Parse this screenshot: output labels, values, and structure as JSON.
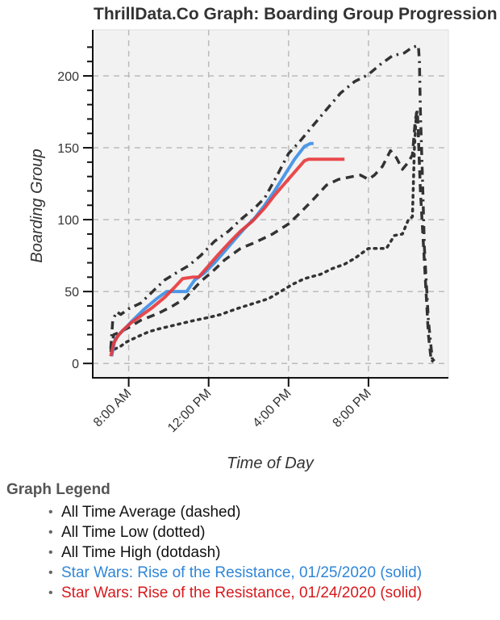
{
  "chart_data": {
    "type": "line",
    "title": "ThrillData.Co Graph: Boarding Group Progression",
    "xlabel": "Time of Day",
    "ylabel": "Boarding Group",
    "xlim_hours": [
      6.2,
      24.0
    ],
    "ylim": [
      -10,
      232
    ],
    "grid": true,
    "x_ticks": [
      {
        "hour": 8,
        "label": "8:00 AM"
      },
      {
        "hour": 12,
        "label": "12:00 PM"
      },
      {
        "hour": 16,
        "label": "4:00 PM"
      },
      {
        "hour": 20,
        "label": "8:00 PM"
      }
    ],
    "y_ticks": [
      0,
      50,
      100,
      150,
      200
    ],
    "y_minor_step": 10,
    "series": [
      {
        "name": "All Time Average",
        "style": "dashed",
        "color": "#333333",
        "x": [
          7.1,
          7.25,
          7.6,
          8.0,
          8.6,
          9.5,
          10.2,
          10.8,
          11.6,
          12.2,
          12.8,
          13.6,
          14.3,
          15.2,
          16.0,
          16.6,
          17.3,
          17.9,
          18.5,
          19.2,
          19.6,
          20.0,
          20.3,
          20.7,
          21.1,
          21.4,
          21.7,
          22.0,
          22.2,
          22.35,
          22.45,
          22.6,
          22.8,
          23.0,
          23.15,
          23.3
        ],
        "y": [
          8,
          20,
          22,
          25,
          30,
          35,
          40,
          45,
          57,
          64,
          72,
          80,
          84,
          90,
          97,
          105,
          115,
          124,
          128,
          130,
          131,
          128,
          131,
          137,
          148,
          143,
          135,
          140,
          145,
          170,
          176,
          120,
          70,
          20,
          1,
          3
        ]
      },
      {
        "name": "All Time Low",
        "style": "dotted",
        "color": "#333333",
        "x": [
          7.3,
          7.6,
          7.9,
          8.5,
          9.0,
          9.5,
          10.1,
          10.7,
          11.3,
          12.0,
          12.6,
          13.4,
          14.3,
          15.0,
          15.6,
          16.2,
          16.8,
          17.6,
          18.2,
          18.8,
          19.3,
          20.0,
          20.5,
          20.9,
          21.3,
          21.7,
          22.0,
          22.2,
          22.3,
          22.4
        ],
        "y": [
          10,
          12,
          15,
          19,
          22,
          24,
          26,
          28,
          30,
          32,
          34,
          38,
          42,
          45,
          50,
          55,
          59,
          62,
          66,
          69,
          73,
          80,
          80,
          80,
          89,
          90,
          100,
          102,
          150,
          175
        ]
      },
      {
        "name": "All Time High",
        "style": "dotdash",
        "color": "#333333",
        "x": [
          7.1,
          7.2,
          7.4,
          7.6,
          8.0,
          8.6,
          9.2,
          9.8,
          10.5,
          11.0,
          11.6,
          12.3,
          13.0,
          13.6,
          14.3,
          14.8,
          15.4,
          16.0,
          16.6,
          17.2,
          17.8,
          18.6,
          19.3,
          20.0,
          20.6,
          21.2,
          21.8,
          22.2,
          22.5,
          22.55,
          22.6,
          22.7,
          22.8,
          23.0,
          23.2
        ],
        "y": [
          10,
          30,
          36,
          34,
          38,
          42,
          50,
          58,
          64,
          68,
          75,
          85,
          92,
          100,
          108,
          115,
          130,
          146,
          155,
          165,
          175,
          188,
          196,
          201,
          208,
          214,
          216,
          220,
          221,
          210,
          175,
          130,
          80,
          30,
          2
        ]
      },
      {
        "name": "Star Wars: Rise of the Resistance, 01/25/2020",
        "style": "solid",
        "color": "#3b8fe6",
        "x": [
          7.15,
          7.3,
          7.5,
          7.8,
          8.2,
          8.8,
          9.4,
          9.9,
          10.2,
          10.6,
          10.9,
          11.3,
          11.8,
          12.3,
          12.8,
          13.3,
          13.8,
          14.3,
          14.8,
          15.3,
          15.8,
          16.3,
          16.8,
          17.1,
          17.25
        ],
        "y": [
          5,
          16,
          20,
          24,
          30,
          38,
          45,
          50,
          50,
          50,
          50,
          58,
          63,
          70,
          78,
          86,
          94,
          101,
          110,
          120,
          131,
          142,
          151,
          153,
          153
        ]
      },
      {
        "name": "Star Wars: Rise of the Resistance, 01/24/2020",
        "style": "solid",
        "color": "#e8373a",
        "x": [
          7.1,
          7.25,
          7.45,
          7.7,
          8.1,
          8.6,
          9.2,
          9.8,
          10.3,
          10.7,
          11.2,
          11.5,
          12.0,
          12.5,
          13.1,
          13.6,
          14.2,
          14.8,
          15.3,
          15.8,
          16.3,
          16.8,
          17.0,
          17.5,
          18.0,
          18.8
        ],
        "y": [
          5,
          14,
          19,
          23,
          28,
          33,
          39,
          46,
          53,
          59,
          60,
          60,
          68,
          76,
          85,
          92,
          99,
          108,
          117,
          125,
          133,
          141,
          142,
          142,
          142,
          142
        ]
      }
    ]
  },
  "legend": {
    "title": "Graph Legend",
    "items": [
      {
        "label": "All Time Average (dashed)",
        "color": "#111111"
      },
      {
        "label": "All Time Low (dotted)",
        "color": "#111111"
      },
      {
        "label": "All Time High (dotdash)",
        "color": "#111111"
      },
      {
        "label": "Star Wars: Rise of the Resistance, 01/25/2020 (solid)",
        "color": "#2f86d8"
      },
      {
        "label": "Star Wars: Rise of the Resistance, 01/24/2020 (solid)",
        "color": "#d7191c"
      }
    ]
  }
}
